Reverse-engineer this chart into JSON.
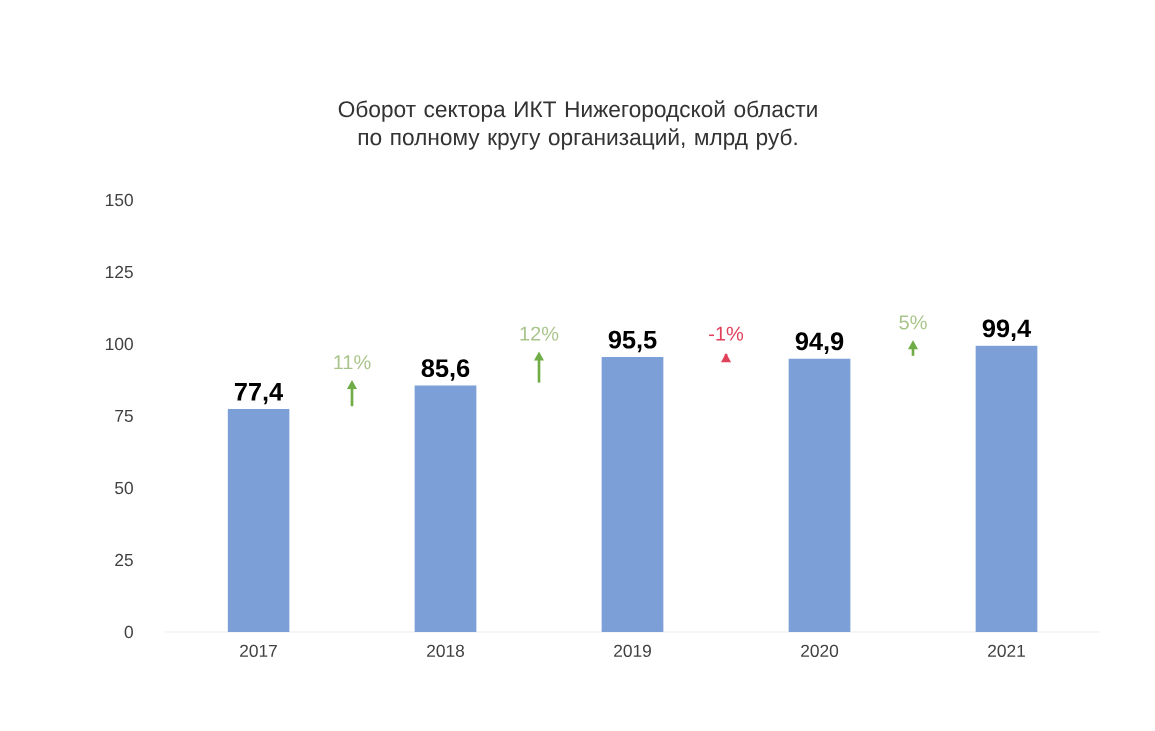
{
  "chart_data": {
    "type": "bar",
    "title": "Оборот сектора ИКТ Нижегородской области по полному кругу организаций, млрд руб.",
    "categories": [
      "2017",
      "2018",
      "2019",
      "2020",
      "2021"
    ],
    "values": [
      77.4,
      85.6,
      95.5,
      94.9,
      99.4
    ],
    "color": "#7b9fd6",
    "ylim": [
      0,
      150
    ],
    "yticks": [
      0,
      25,
      50,
      75,
      100,
      125,
      150
    ],
    "data_labels": true,
    "value_labels": [
      "77,4",
      "85,6",
      "95,5",
      "94,9",
      "99,4"
    ],
    "annotations": [
      "11%",
      "12%",
      "-1%",
      "5%"
    ]
  }
}
